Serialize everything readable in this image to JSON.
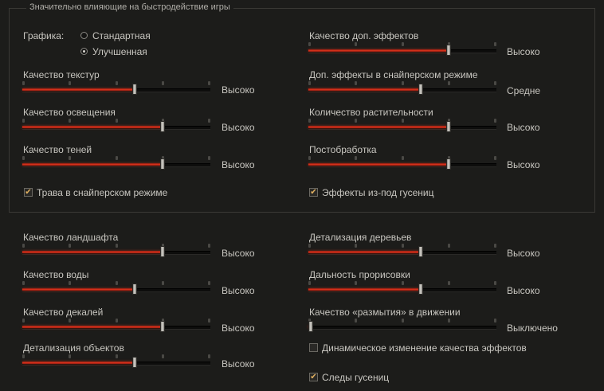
{
  "group_title": "Значительно влияющие на быстродействие игры",
  "graphics": {
    "label": "Графика:",
    "options": [
      "Стандартная",
      "Улучшенная"
    ],
    "selected": 1
  },
  "levels": {
    "high": "Высоко",
    "medium": "Средне",
    "off": "Выключено"
  },
  "sliders": [
    {
      "label": "Качество текстур",
      "value": "Высоко",
      "level": 0.6
    },
    {
      "label": "Качество освещения",
      "value": "Высоко",
      "level": 0.75
    },
    {
      "label": "Качество теней",
      "value": "Высоко",
      "level": 0.75
    },
    {
      "label": "Качество доп. эффектов",
      "value": "Высоко",
      "level": 0.75
    },
    {
      "label": "Доп. эффекты в снайперском режиме",
      "value": "Средне",
      "level": 0.6
    },
    {
      "label": "Количество растительности",
      "value": "Высоко",
      "level": 0.75
    },
    {
      "label": "Постобработка",
      "value": "Высоко",
      "level": 0.75
    },
    {
      "label": "Качество ландшафта",
      "value": "Высоко",
      "level": 0.75
    },
    {
      "label": "Качество воды",
      "value": "Высоко",
      "level": 0.6
    },
    {
      "label": "Качество декалей",
      "value": "Высоко",
      "level": 0.75
    },
    {
      "label": "Детализация объектов",
      "value": "Высоко",
      "level": 0.6
    },
    {
      "label": "Детализация деревьев",
      "value": "Высоко",
      "level": 0.6
    },
    {
      "label": "Дальность прорисовки",
      "value": "Высоко",
      "level": 0.6
    },
    {
      "label": "Качество «размытия» в движении",
      "value": "Выключено",
      "level": 0.0
    }
  ],
  "checkboxes": [
    {
      "label": "Трава в снайперском режиме",
      "checked": true
    },
    {
      "label": "Эффекты из-под гусениц",
      "checked": true
    },
    {
      "label": "Динамическое изменение качества эффектов",
      "checked": false
    },
    {
      "label": "Следы гусениц",
      "checked": true
    }
  ]
}
